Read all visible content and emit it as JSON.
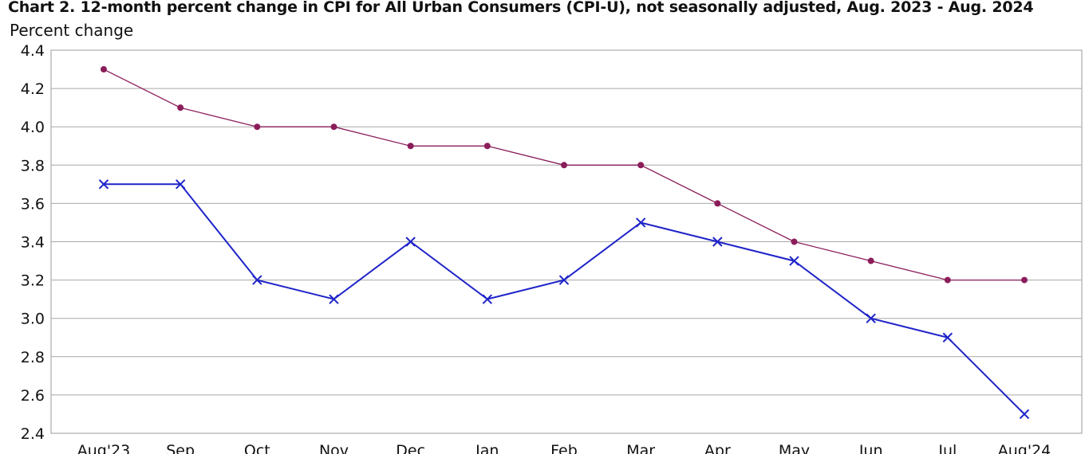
{
  "chart_data": {
    "type": "line",
    "title": "Chart 2. 12-month percent change in CPI for All Urban Consumers (CPI-U), not seasonally adjusted, Aug. 2023 - Aug. 2024",
    "ylabel": "Percent change",
    "xlabel": "",
    "categories": [
      "Aug'23",
      "Sep",
      "Oct",
      "Nov",
      "Dec",
      "Jan",
      "Feb",
      "Mar",
      "Apr",
      "May",
      "Jun",
      "Jul",
      "Aug'24"
    ],
    "ylim": [
      2.4,
      4.4
    ],
    "yticks": [
      "2.4",
      "2.6",
      "2.8",
      "3.0",
      "3.2",
      "3.4",
      "3.6",
      "3.8",
      "4.0",
      "4.2",
      "4.4"
    ],
    "grid": true,
    "series": [
      {
        "name": "series-circle",
        "color": "#8b1d5a",
        "marker": "circle",
        "values": [
          4.3,
          4.1,
          4.0,
          4.0,
          3.9,
          3.9,
          3.8,
          3.8,
          3.6,
          3.4,
          3.3,
          3.2,
          3.2
        ]
      },
      {
        "name": "series-x",
        "color": "#1f24c8",
        "marker": "x",
        "values": [
          3.7,
          3.7,
          3.2,
          3.1,
          3.4,
          3.1,
          3.2,
          3.5,
          3.4,
          3.3,
          3.0,
          2.9,
          2.5
        ]
      }
    ]
  }
}
